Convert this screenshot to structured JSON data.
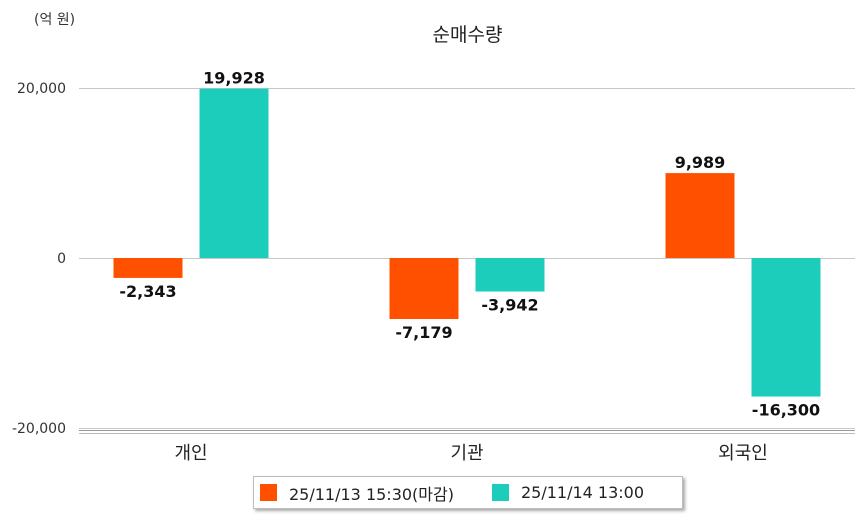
{
  "unit_label": "(억 원)",
  "colors": {
    "series1": "#ff5000",
    "series2": "#1ccdbb",
    "grid": "#c8c8c8",
    "axis": "#999999"
  },
  "chart_data": {
    "type": "bar",
    "title": "순매수량",
    "categories": [
      "개인",
      "기관",
      "외국인"
    ],
    "series": [
      {
        "name": "25/11/13 15:30(마감)",
        "values": [
          -2343,
          -7179,
          9989
        ],
        "labels": [
          "-2,343",
          "-7,179",
          "9,989"
        ]
      },
      {
        "name": "25/11/14 13:00",
        "values": [
          19928,
          -3942,
          -16300
        ],
        "labels": [
          "19,928",
          "-3,942",
          "-16,300"
        ]
      }
    ],
    "ylim": [
      -20000,
      20000
    ],
    "yticks": [
      20000,
      0,
      -20000
    ],
    "ytick_labels": [
      "20,000",
      "0",
      "-20,000"
    ],
    "grid": true,
    "legend_position": "bottom-center"
  }
}
